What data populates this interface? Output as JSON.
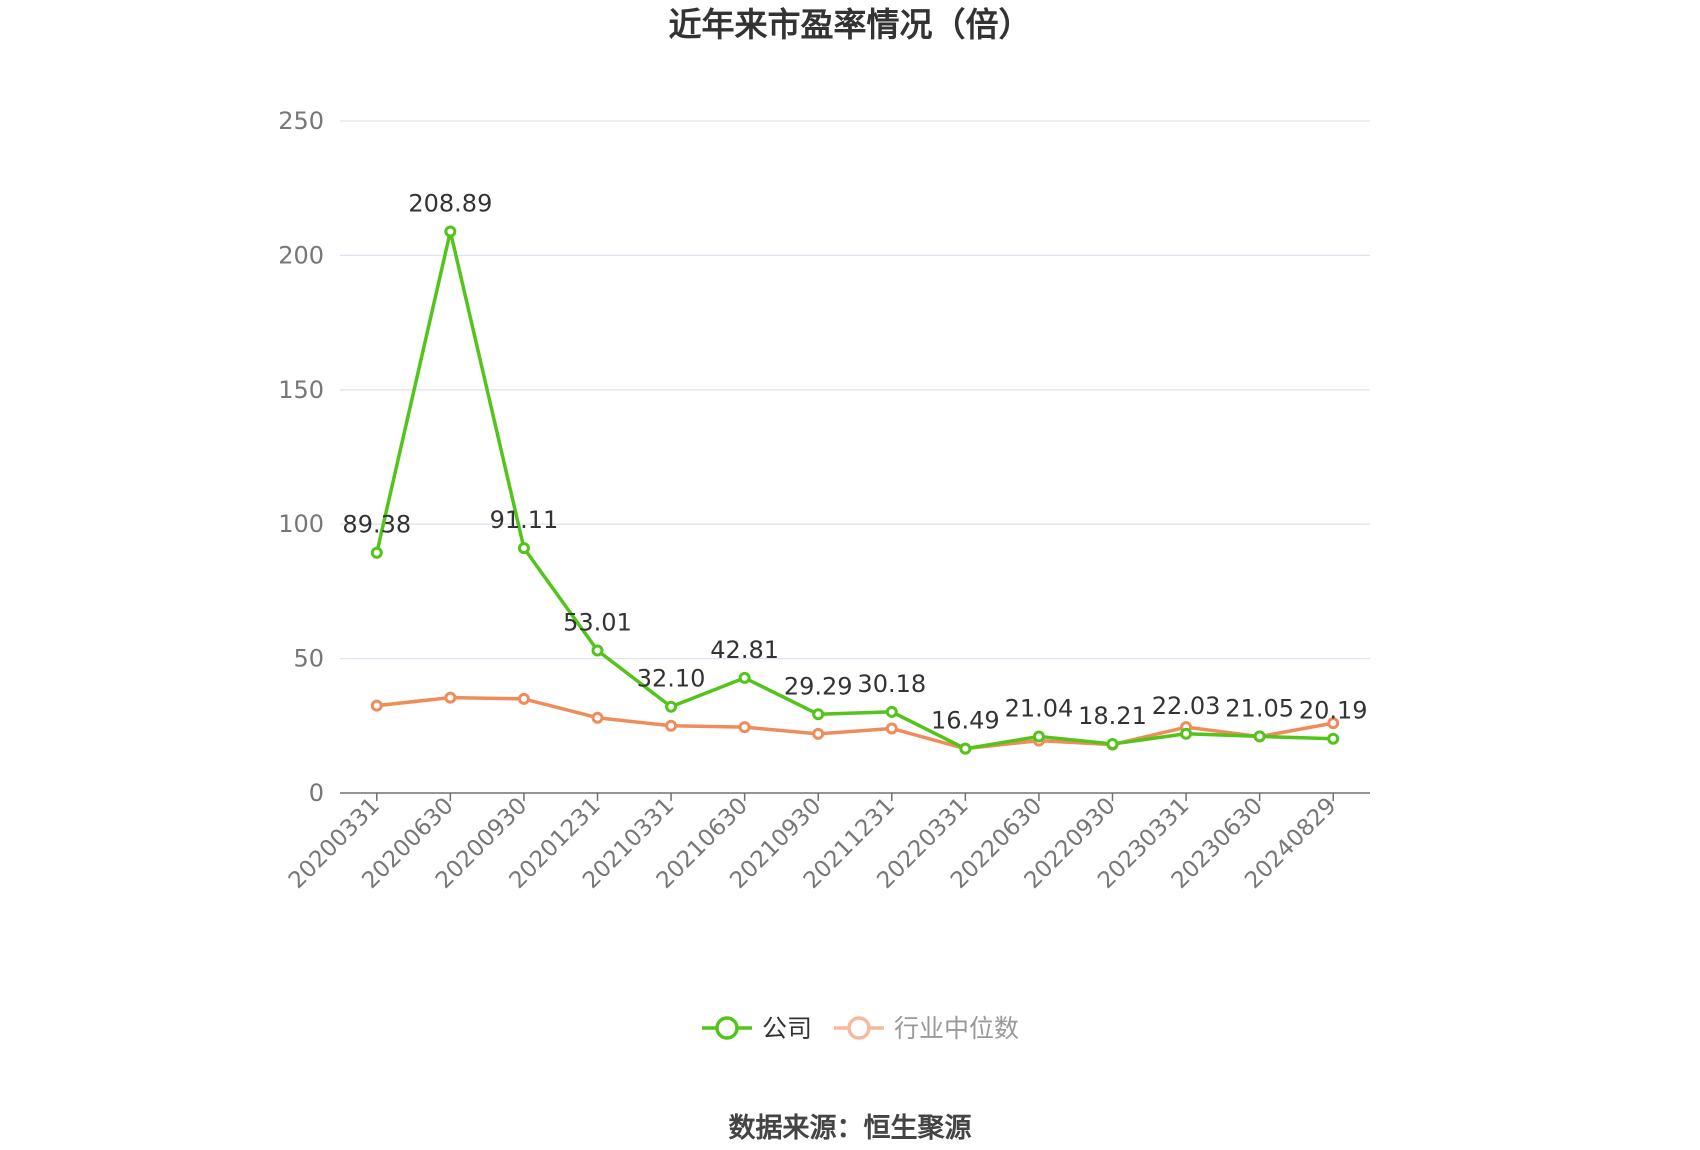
{
  "title": "近年来市盈率情况（倍）",
  "source": "数据来源：恒生聚源",
  "chart_data": {
    "type": "line",
    "categories": [
      "20200331",
      "20200630",
      "20200930",
      "20201231",
      "20210331",
      "20210630",
      "20210930",
      "20211231",
      "20220331",
      "20220630",
      "20220930",
      "20230331",
      "20230630",
      "20240829"
    ],
    "ylim": [
      0,
      250
    ],
    "yticks": [
      0,
      50,
      100,
      150,
      200,
      250
    ],
    "grid": true,
    "legend_position": "bottom",
    "series": [
      {
        "name": "公司",
        "color": "#52c41a",
        "values": [
          89.38,
          208.89,
          91.11,
          53.01,
          32.1,
          42.81,
          29.29,
          30.18,
          16.49,
          21.04,
          18.21,
          22.03,
          21.05,
          20.19
        ],
        "labels": [
          "89.38",
          "208.89",
          "91.11",
          "53.01",
          "32.10",
          "42.81",
          "29.29",
          "30.18",
          "16.49",
          "21.04",
          "18.21",
          "22.03",
          "21.05",
          "20.19"
        ]
      },
      {
        "name": "行业中位数",
        "color": "#f08c5a",
        "legend_color": "#f7b89b",
        "values": [
          32.5,
          35.5,
          35.0,
          28.0,
          25.0,
          24.5,
          22.0,
          24.0,
          16.5,
          19.5,
          18.0,
          24.5,
          21.0,
          26.0
        ]
      }
    ]
  }
}
